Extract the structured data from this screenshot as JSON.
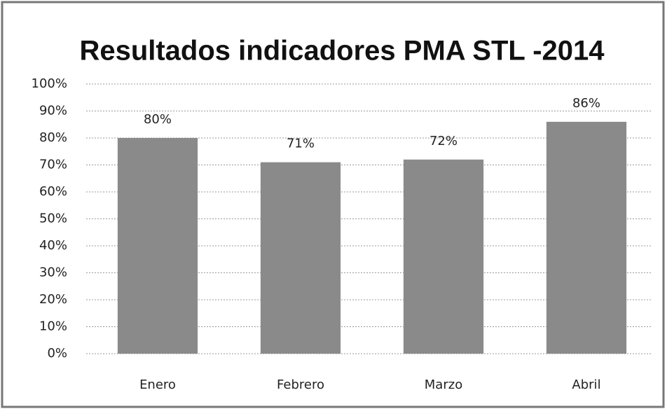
{
  "chart_data": {
    "type": "bar",
    "title": "Resultados indicadores PMA STL -2014",
    "categories": [
      "Enero",
      "Febrero",
      "Marzo",
      "Abril"
    ],
    "values": [
      80,
      71,
      72,
      86
    ],
    "value_labels": [
      "80%",
      "71%",
      "72%",
      "86%"
    ],
    "color": "#8a8a8a",
    "ylim": [
      0,
      100
    ],
    "yticks": [
      {
        "value": 0,
        "label": "0%"
      },
      {
        "value": 10,
        "label": "10%"
      },
      {
        "value": 20,
        "label": "20%"
      },
      {
        "value": 30,
        "label": "30%"
      },
      {
        "value": 40,
        "label": "40%"
      },
      {
        "value": 50,
        "label": "50%"
      },
      {
        "value": 60,
        "label": "60%"
      },
      {
        "value": 70,
        "label": "70%"
      },
      {
        "value": 80,
        "label": "80%"
      },
      {
        "value": 90,
        "label": "90%"
      },
      {
        "value": 100,
        "label": "100%"
      }
    ],
    "grid": true
  }
}
